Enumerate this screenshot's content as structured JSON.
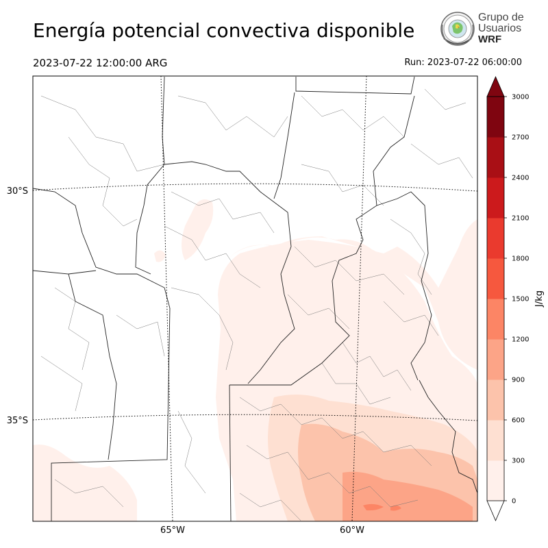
{
  "title": "Energía potencial convectiva disponible",
  "valid_time": "2023-07-22 12:00:00 ARG",
  "run_time": "Run: 2023-07-22 06:00:00",
  "logo": {
    "line1": "Grupo de",
    "line2": "Usuarios",
    "line3": "WRF"
  },
  "map": {
    "lat_labels": [
      "30°S",
      "35°S"
    ],
    "lon_labels": [
      "65°W",
      "60°W"
    ]
  },
  "colorbar": {
    "unit": "J/kg",
    "ticks": [
      "0",
      "300",
      "600",
      "900",
      "1200",
      "1500",
      "1800",
      "2100",
      "2400",
      "2700",
      "3000"
    ],
    "colors": [
      "#fff0eb",
      "#fee0d2",
      "#fcc3ab",
      "#fca487",
      "#fc8565",
      "#f6583e",
      "#ea3a2e",
      "#cc1a1c",
      "#a90f15",
      "#7f0510"
    ],
    "extend": "both"
  }
}
